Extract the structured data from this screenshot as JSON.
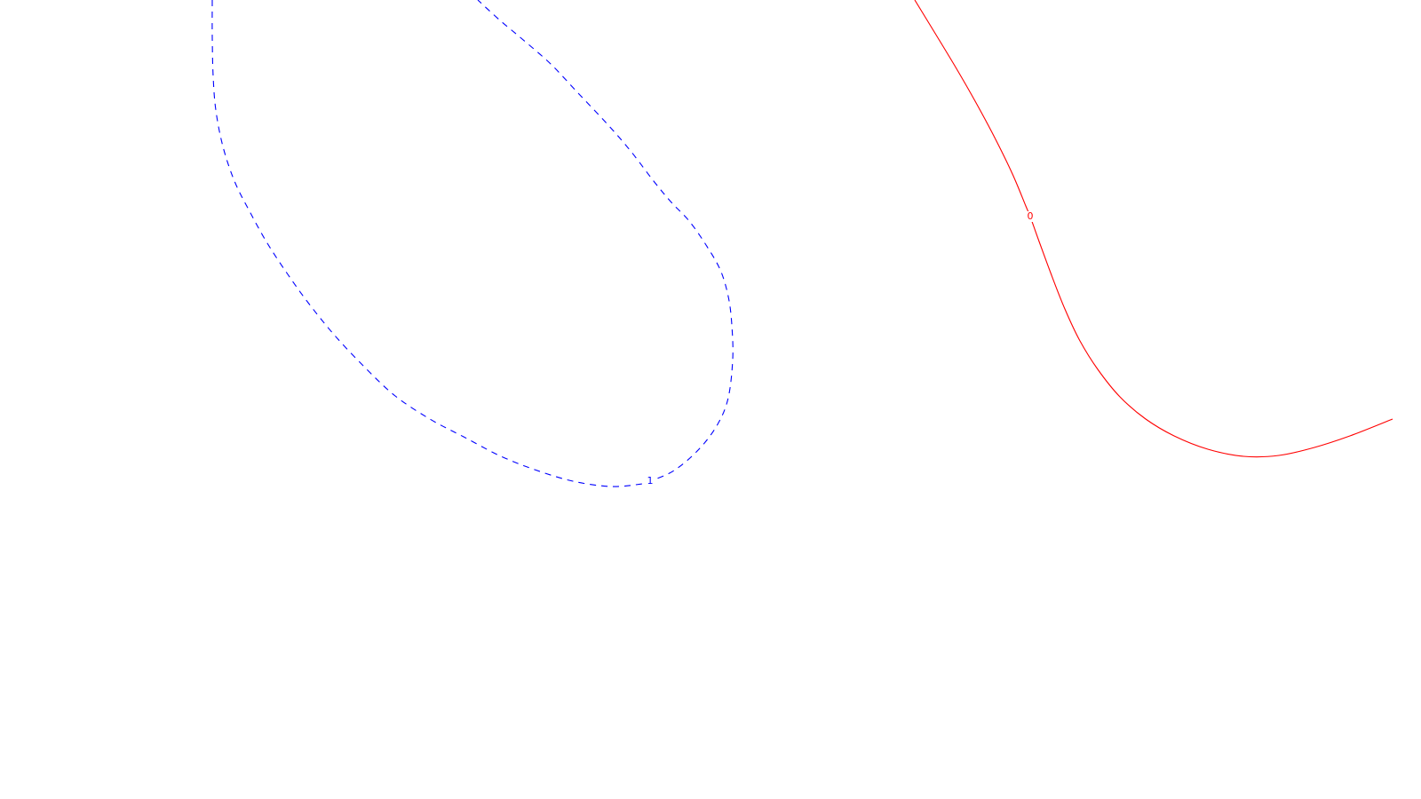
{
  "chart_data": {
    "type": "contour",
    "title": "",
    "xlabel": "",
    "ylabel": "",
    "axes_visible": false,
    "grid": false,
    "series": [
      {
        "level": "0",
        "color": "#ff0000",
        "line_style": "solid",
        "label_point": [
          1160,
          244
        ],
        "points": [
          [
            1030,
            0
          ],
          [
            1052,
            36
          ],
          [
            1075,
            74
          ],
          [
            1098,
            114
          ],
          [
            1120,
            155
          ],
          [
            1140,
            196
          ],
          [
            1155,
            232
          ],
          [
            1160,
            244
          ],
          [
            1170,
            272
          ],
          [
            1184,
            310
          ],
          [
            1199,
            348
          ],
          [
            1216,
            384
          ],
          [
            1236,
            416
          ],
          [
            1261,
            447
          ],
          [
            1290,
            472
          ],
          [
            1322,
            491
          ],
          [
            1360,
            506
          ],
          [
            1400,
            514
          ],
          [
            1440,
            513
          ],
          [
            1480,
            504
          ],
          [
            1520,
            491
          ],
          [
            1568,
            472
          ]
        ]
      },
      {
        "level": "1",
        "color": "#0000ff",
        "line_style": "dashed",
        "label_point": [
          732,
          542
        ],
        "points": [
          [
            239,
            0
          ],
          [
            239,
            42
          ],
          [
            240,
            86
          ],
          [
            243,
            124
          ],
          [
            251,
            165
          ],
          [
            264,
            204
          ],
          [
            281,
            238
          ],
          [
            301,
            274
          ],
          [
            324,
            309
          ],
          [
            347,
            341
          ],
          [
            377,
            378
          ],
          [
            411,
            414
          ],
          [
            445,
            446
          ],
          [
            484,
            472
          ],
          [
            522,
            492
          ],
          [
            562,
            513
          ],
          [
            602,
            529
          ],
          [
            645,
            542
          ],
          [
            688,
            548
          ],
          [
            723,
            545
          ],
          [
            732,
            542
          ],
          [
            759,
            530
          ],
          [
            787,
            506
          ],
          [
            808,
            478
          ],
          [
            820,
            448
          ],
          [
            825,
            405
          ],
          [
            824,
            366
          ],
          [
            820,
            334
          ],
          [
            811,
            304
          ],
          [
            795,
            276
          ],
          [
            776,
            249
          ],
          [
            756,
            228
          ],
          [
            736,
            204
          ],
          [
            710,
            170
          ],
          [
            684,
            140
          ],
          [
            652,
            106
          ],
          [
            620,
            72
          ],
          [
            588,
            44
          ],
          [
            563,
            23
          ],
          [
            538,
            0
          ]
        ]
      }
    ]
  }
}
